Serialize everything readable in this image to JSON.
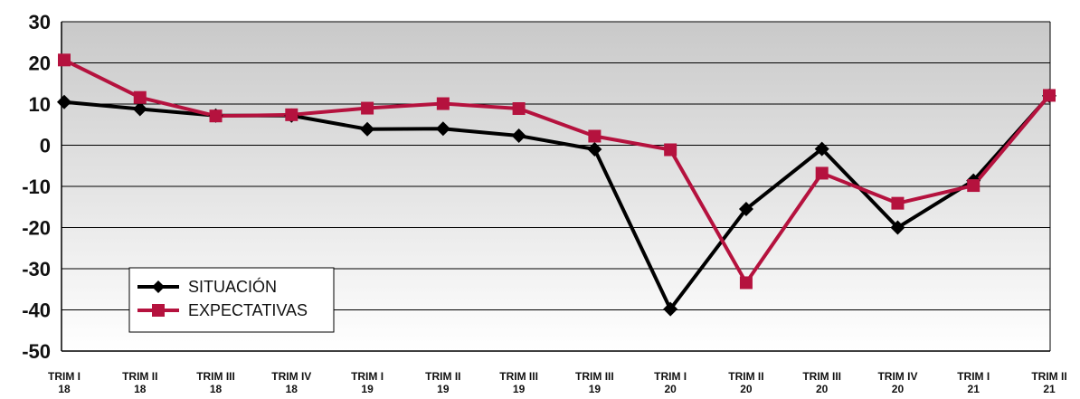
{
  "chart_data": {
    "type": "line",
    "categories": [
      [
        "TRIM I",
        "18"
      ],
      [
        "TRIM II",
        "18"
      ],
      [
        "TRIM III",
        "18"
      ],
      [
        "TRIM IV",
        "18"
      ],
      [
        "TRIM I",
        "19"
      ],
      [
        "TRIM II",
        "19"
      ],
      [
        "TRIM III",
        "19"
      ],
      [
        "TRIM III",
        "19"
      ],
      [
        "TRIM I",
        "20"
      ],
      [
        "TRIM II",
        "20"
      ],
      [
        "TRIM III",
        "20"
      ],
      [
        "TRIM IV",
        "20"
      ],
      [
        "TRIM I",
        "21"
      ],
      [
        "TRIM II",
        "21"
      ]
    ],
    "series": [
      {
        "name": "SITUACIÓN",
        "color": "#000000",
        "marker": "diamond",
        "values": [
          10.5,
          8.8,
          7.2,
          7.2,
          3.9,
          4.0,
          2.3,
          -1.0,
          -39.8,
          -15.5,
          -0.9,
          -20.0,
          -8.6,
          12.0
        ]
      },
      {
        "name": "EXPECTATIVAS",
        "color": "#b5123e",
        "marker": "square",
        "values": [
          20.7,
          11.6,
          7.1,
          7.4,
          9.0,
          10.1,
          8.9,
          2.2,
          -1.1,
          -33.4,
          -6.8,
          -14.1,
          -9.8,
          12.1
        ]
      }
    ],
    "yticks": [
      30,
      20,
      10,
      0,
      -10,
      -20,
      -30,
      -40,
      -50
    ],
    "ylim": [
      -50,
      30
    ],
    "grid": true,
    "legend_position": "bottom-left"
  }
}
